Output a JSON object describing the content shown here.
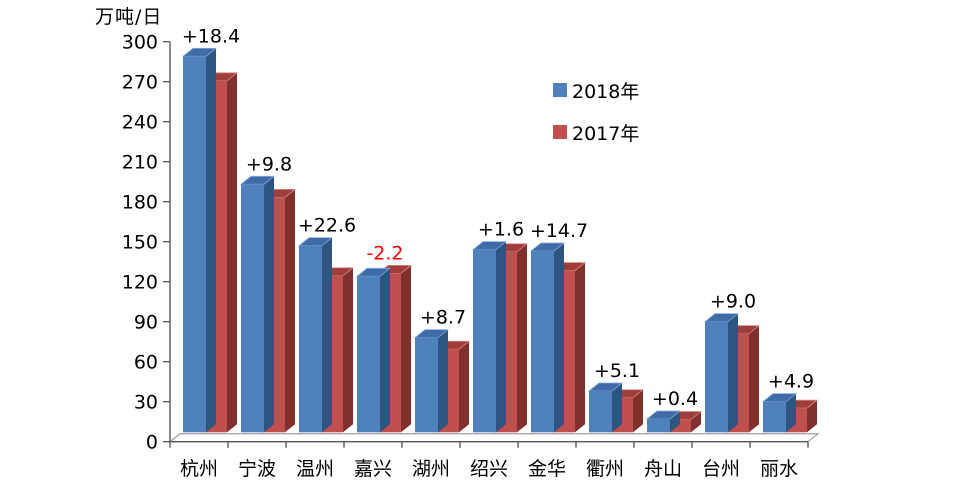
{
  "chart_data": {
    "type": "bar",
    "style": "3d-clustered-column",
    "title": "",
    "ylabel": "万吨/日",
    "xlabel": "",
    "ylim": [
      0,
      300
    ],
    "ytick_step": 30,
    "y_ticks": [
      0,
      30,
      60,
      90,
      120,
      150,
      180,
      210,
      240,
      270,
      300
    ],
    "grid": false,
    "legend_position": "upper-middle-right",
    "categories": [
      "杭州",
      "宁波",
      "温州",
      "嘉兴",
      "湖州",
      "绍兴",
      "金华",
      "衢州",
      "舟山",
      "台州",
      "丽水"
    ],
    "series": [
      {
        "name": "2018年",
        "color": "#4F81BD",
        "values": [
          282,
          186,
          140,
          117,
          71,
          137,
          136,
          31,
          10,
          83,
          23
        ]
      },
      {
        "name": "2017年",
        "color": "#C0504D",
        "values": [
          263.6,
          176.2,
          117.4,
          119.2,
          62.3,
          135.4,
          121.3,
          25.9,
          9.6,
          74.0,
          18.1
        ]
      }
    ],
    "annotations": {
      "labels": [
        "+18.4",
        "+9.8",
        "+22.6",
        "-2.2",
        "+8.7",
        "+1.6",
        "+14.7",
        "+5.1",
        "+0.4",
        "+9.0",
        "+4.9"
      ],
      "positive_color": "#000000",
      "negative_color": "#FF0000"
    }
  },
  "legend": {
    "items": [
      {
        "label": "2018年",
        "color": "#4F81BD"
      },
      {
        "label": "2017年",
        "color": "#C0504D"
      }
    ]
  },
  "colors": {
    "blue_front": "#4F81BD",
    "blue_top": "#3F6CA6",
    "blue_side": "#2E5482",
    "blue_edge": "#87AADE",
    "red_front": "#C0504D",
    "red_top": "#A03E3C",
    "red_side": "#82302E",
    "red_edge": "#D98B88",
    "axis": "#595959",
    "floor_outline": "#A6A6A6",
    "tick_text": "#000000"
  }
}
